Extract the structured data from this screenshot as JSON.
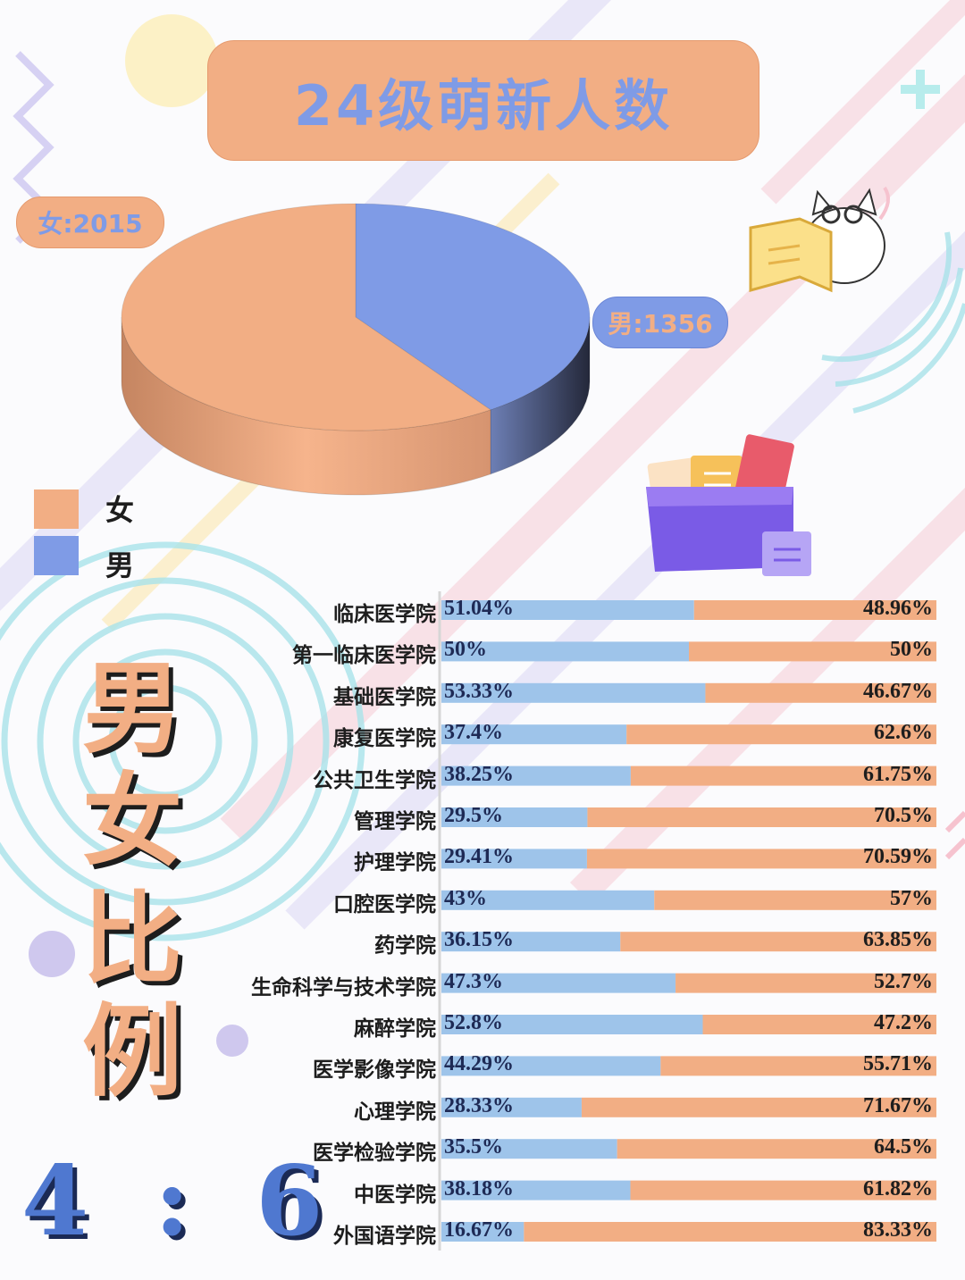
{
  "title": "24级萌新人数",
  "callouts": {
    "female": "女:2015",
    "male": "男:1356"
  },
  "legend": [
    {
      "label": "女",
      "color": "#f2ae84"
    },
    {
      "label": "男",
      "color": "#7f9be6"
    }
  ],
  "side_title": [
    "男",
    "女",
    "比",
    "例"
  ],
  "ratio_text": "4 : 6",
  "colors": {
    "female": "#f2ae84",
    "male": "#7f9be6",
    "male_bar": "#9ec4ea",
    "female_bar": "#f2ae84"
  },
  "icons": [
    "cat-reading-icon",
    "folder-icon"
  ],
  "chart_data": [
    {
      "type": "pie",
      "slices": [
        {
          "label": "女",
          "value": 2015
        },
        {
          "label": "男",
          "value": 1356
        }
      ]
    },
    {
      "type": "bar",
      "stacked": true,
      "orientation": "horizontal",
      "categories": [
        "临床医学院",
        "第一临床医学院",
        "基础医学院",
        "康复医学院",
        "公共卫生学院",
        "管理学院",
        "护理学院",
        "口腔医学院",
        "药学院",
        "生命科学与技术学院",
        "麻醉学院",
        "医学影像学院",
        "心理学院",
        "医学检验学院",
        "中医学院",
        "外国语学院"
      ],
      "series": [
        {
          "name": "男",
          "values": [
            51.04,
            50,
            53.33,
            37.4,
            38.25,
            29.5,
            29.41,
            43,
            36.15,
            47.3,
            52.8,
            44.29,
            28.33,
            35.5,
            38.18,
            16.67
          ],
          "labels": [
            "51.04%",
            "50%",
            "53.33%",
            "37.4%",
            "38.25%",
            "29.5%",
            "29.41%",
            "43%",
            "36.15%",
            "47.3%",
            "52.8%",
            "44.29%",
            "28.33%",
            "35.5%",
            "38.18%",
            "16.67%"
          ]
        },
        {
          "name": "女",
          "values": [
            48.96,
            50,
            46.67,
            62.6,
            61.75,
            70.5,
            70.59,
            57,
            63.85,
            52.7,
            47.2,
            55.71,
            71.67,
            64.5,
            61.82,
            83.33
          ],
          "labels": [
            "48.96%",
            "50%",
            "46.67%",
            "62.6%",
            "61.75%",
            "70.5%",
            "70.59%",
            "57%",
            "63.85%",
            "52.7%",
            "47.2%",
            "55.71%",
            "71.67%",
            "64.5%",
            "61.82%",
            "83.33%"
          ]
        }
      ],
      "xlim": [
        0,
        100
      ]
    }
  ]
}
